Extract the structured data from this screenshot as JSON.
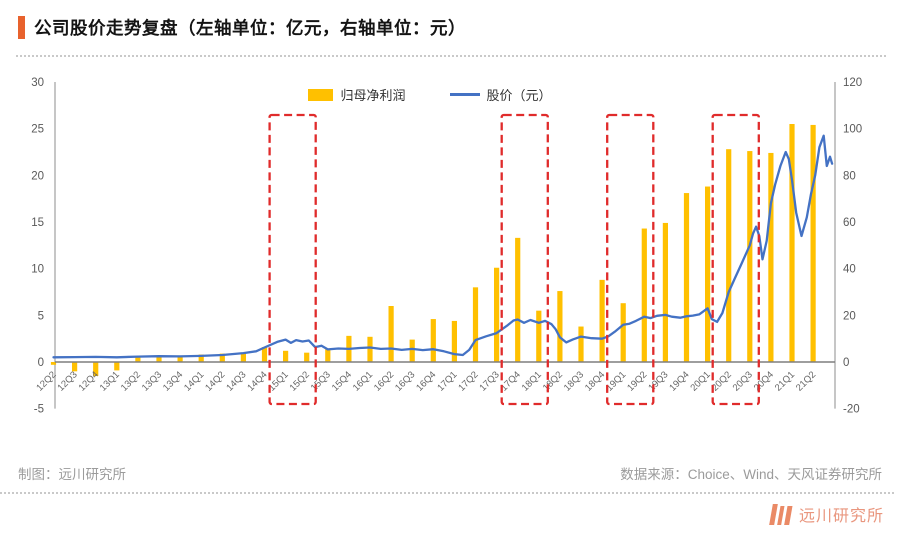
{
  "title": "公司股价走势复盘（左轴单位：亿元，右轴单位：元）",
  "legend": [
    {
      "label": "归母净利润",
      "type": "bar",
      "color": "#FFC000"
    },
    {
      "label": "股价（元）",
      "type": "line",
      "color": "#4472C4"
    }
  ],
  "chart_data": {
    "type": "bar",
    "title": "公司股价走势复盘",
    "left_axis_unit": "亿元",
    "right_axis_unit": "元",
    "categories": [
      "12Q2",
      "12Q3",
      "12Q4",
      "13Q1",
      "13Q2",
      "13Q3",
      "13Q4",
      "14Q1",
      "14Q2",
      "14Q3",
      "14Q4",
      "15Q1",
      "15Q2",
      "15Q3",
      "15Q4",
      "16Q1",
      "16Q2",
      "16Q3",
      "16Q4",
      "17Q1",
      "17Q2",
      "17Q3",
      "17Q4",
      "18Q1",
      "18Q2",
      "18Q3",
      "18Q4",
      "19Q1",
      "19Q2",
      "19Q3",
      "19Q4",
      "20Q1",
      "20Q2",
      "20Q3",
      "20Q4",
      "21Q1",
      "21Q2"
    ],
    "series": [
      {
        "name": "归母净利润",
        "type": "bar",
        "axis": "left",
        "color": "#FFC000",
        "values": [
          -0.3,
          -1.0,
          -1.5,
          -0.9,
          0.5,
          0.6,
          0.7,
          0.8,
          0.9,
          1.0,
          1.6,
          1.2,
          1.0,
          1.4,
          2.8,
          2.7,
          6.0,
          2.4,
          4.6,
          4.4,
          8.0,
          10.1,
          13.3,
          5.5,
          7.6,
          3.8,
          8.8,
          6.3,
          14.3,
          14.9,
          18.1,
          18.8,
          22.8,
          22.6,
          22.4,
          25.5,
          25.4
        ]
      },
      {
        "name": "股价（元）",
        "type": "line",
        "axis": "right",
        "color": "#4472C4",
        "points": [
          [
            0,
            2
          ],
          [
            1,
            2.1
          ],
          [
            2,
            2.2
          ],
          [
            3,
            2
          ],
          [
            4,
            2.3
          ],
          [
            5,
            2.5
          ],
          [
            6,
            2.4
          ],
          [
            7,
            2.6
          ],
          [
            8,
            3
          ],
          [
            9,
            3.8
          ],
          [
            9.6,
            4.6
          ],
          [
            10,
            6.2
          ],
          [
            10.6,
            8.6
          ],
          [
            11,
            9.6
          ],
          [
            11.25,
            8.2
          ],
          [
            11.5,
            9.4
          ],
          [
            11.8,
            8.8
          ],
          [
            12.1,
            9.2
          ],
          [
            12.4,
            6.4
          ],
          [
            12.7,
            7
          ],
          [
            13,
            5.4
          ],
          [
            13.5,
            5.8
          ],
          [
            14,
            5.6
          ],
          [
            14.5,
            6
          ],
          [
            15,
            6.2
          ],
          [
            15.5,
            5.6
          ],
          [
            16,
            5.8
          ],
          [
            16.5,
            5.2
          ],
          [
            17,
            5.6
          ],
          [
            17.5,
            5.1
          ],
          [
            18,
            5.5
          ],
          [
            18.5,
            4.6
          ],
          [
            19,
            3.4
          ],
          [
            19.4,
            3
          ],
          [
            19.7,
            5.2
          ],
          [
            20,
            9.4
          ],
          [
            20.5,
            11
          ],
          [
            21,
            12.4
          ],
          [
            21.5,
            15.6
          ],
          [
            21.8,
            17.8
          ],
          [
            22,
            18.2
          ],
          [
            22.3,
            16.8
          ],
          [
            22.6,
            18
          ],
          [
            23,
            16.8
          ],
          [
            23.3,
            17.6
          ],
          [
            23.6,
            16.2
          ],
          [
            23.8,
            14
          ],
          [
            24,
            10.6
          ],
          [
            24.3,
            8.4
          ],
          [
            24.6,
            9.6
          ],
          [
            25,
            10.9
          ],
          [
            25.5,
            10.2
          ],
          [
            26,
            10
          ],
          [
            26.3,
            11
          ],
          [
            26.6,
            13
          ],
          [
            27,
            16
          ],
          [
            27.3,
            16.4
          ],
          [
            27.6,
            17.6
          ],
          [
            28,
            19.4
          ],
          [
            28.3,
            18.8
          ],
          [
            28.6,
            19.8
          ],
          [
            29,
            20.2
          ],
          [
            29.3,
            19.4
          ],
          [
            29.7,
            19
          ],
          [
            30,
            19.6
          ],
          [
            30.3,
            19.9
          ],
          [
            30.6,
            20.4
          ],
          [
            31,
            23
          ],
          [
            31.2,
            18.4
          ],
          [
            31.45,
            17.2
          ],
          [
            31.7,
            21
          ],
          [
            32,
            30
          ],
          [
            32.3,
            36
          ],
          [
            32.6,
            42
          ],
          [
            33,
            50
          ],
          [
            33.15,
            55
          ],
          [
            33.3,
            58
          ],
          [
            33.45,
            54
          ],
          [
            33.6,
            44
          ],
          [
            33.8,
            52
          ],
          [
            34,
            68
          ],
          [
            34.2,
            76
          ],
          [
            34.45,
            84
          ],
          [
            34.7,
            90
          ],
          [
            34.85,
            87
          ],
          [
            35,
            78
          ],
          [
            35.2,
            64
          ],
          [
            35.45,
            54
          ],
          [
            35.7,
            62
          ],
          [
            35.9,
            72
          ],
          [
            36.1,
            80
          ],
          [
            36.3,
            92
          ],
          [
            36.5,
            97
          ],
          [
            36.65,
            84
          ],
          [
            36.8,
            88
          ],
          [
            36.9,
            85
          ]
        ]
      }
    ],
    "left_axis": {
      "range": [
        -5,
        30
      ],
      "ticks": [
        30,
        25,
        20,
        15,
        10,
        5,
        0,
        -5
      ]
    },
    "right_axis": {
      "range": [
        -20,
        120
      ],
      "ticks": [
        120,
        100,
        80,
        60,
        40,
        20,
        0,
        -20
      ]
    },
    "grid": false,
    "legend_position": "top-center",
    "highlight_boxes": [
      {
        "from": "15Q1",
        "to": "15Q2"
      },
      {
        "from": "17Q4",
        "to": "18Q1"
      },
      {
        "from": "19Q1",
        "to": "19Q2"
      },
      {
        "from": "20Q2",
        "to": "20Q3"
      }
    ],
    "highlight_color": "#e02b2b",
    "axis_label_color": "#595959"
  },
  "footer": {
    "left": "制图：远川研究所",
    "right": "数据来源：Choice、Wind、天风证券研究所"
  },
  "logo": {
    "text": "远川研究所",
    "color": "#ea8a66"
  }
}
